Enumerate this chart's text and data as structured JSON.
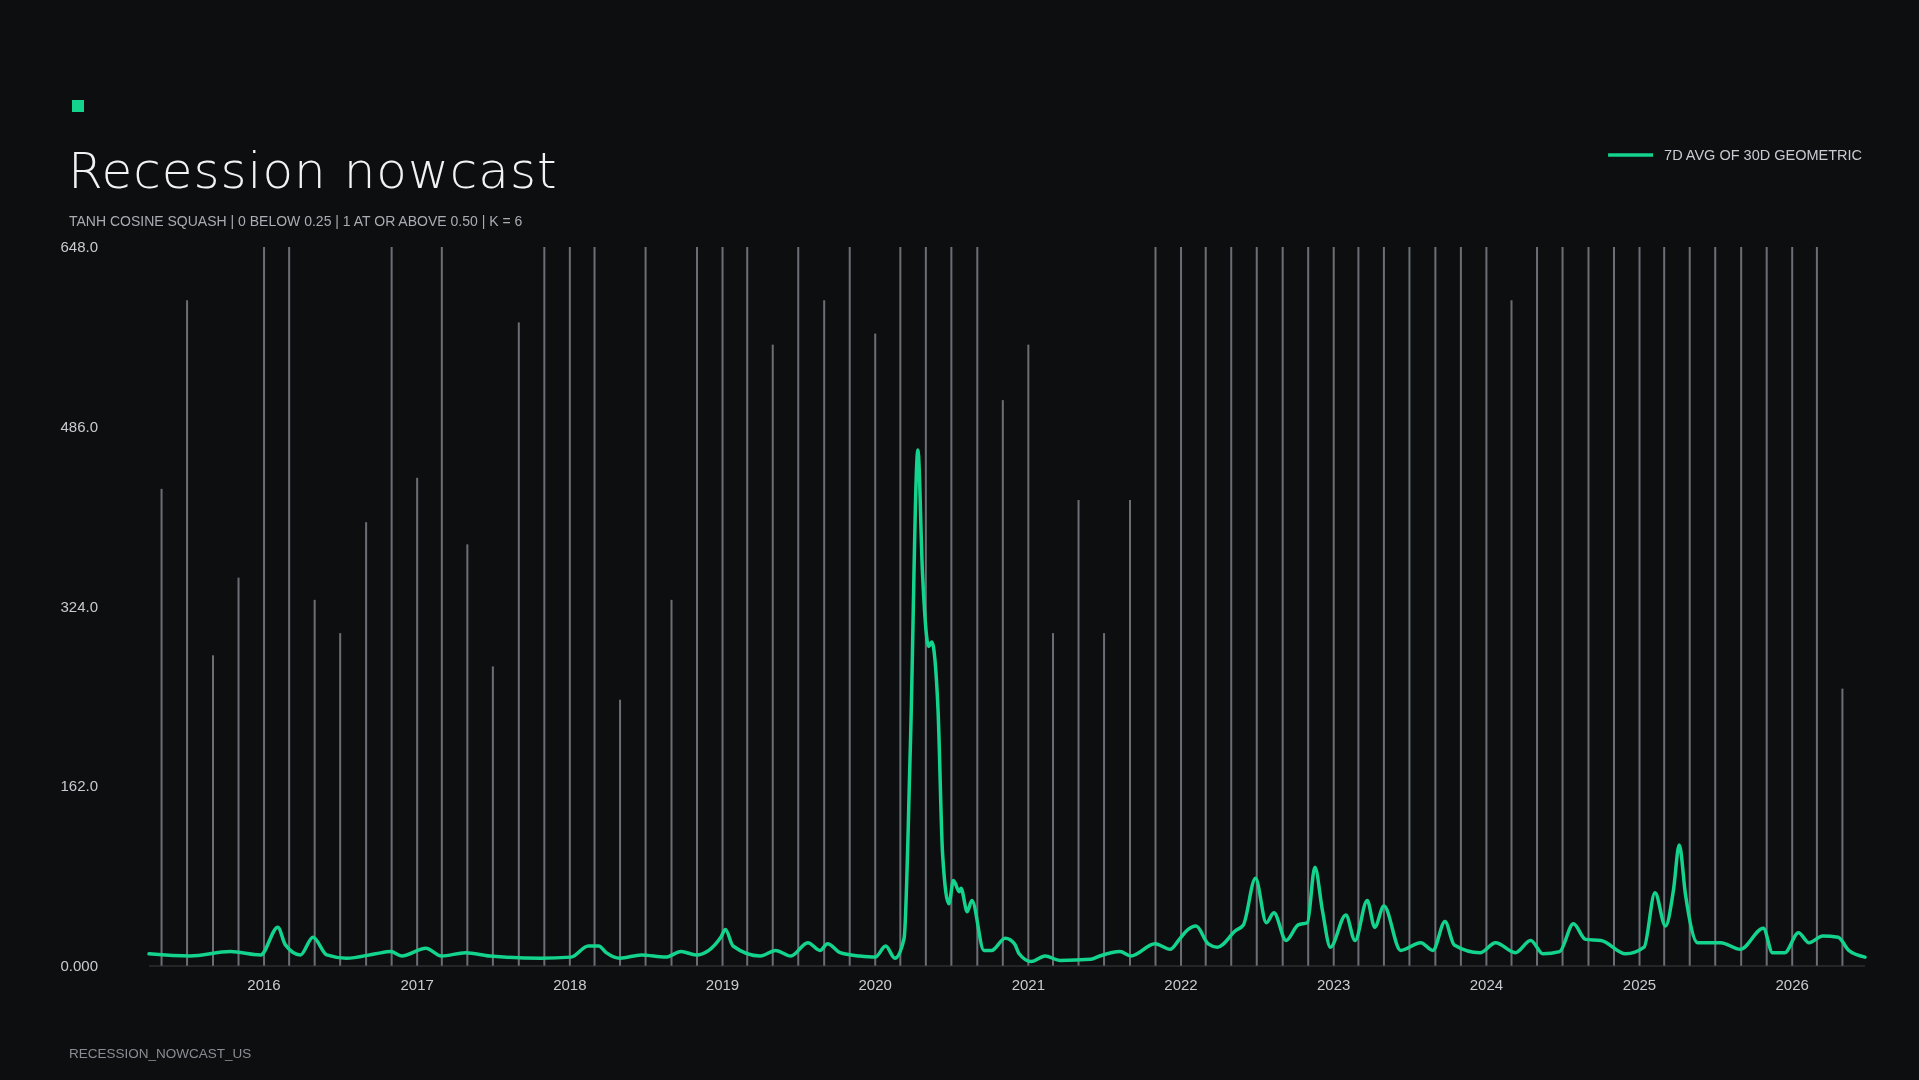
{
  "chart_data": {
    "type": "line",
    "title": "Recession nowcast",
    "subtitle": "TANH COSINE SQUASH | 0 BELOW 0.25 | 1 AT OR ABOVE 0.50 | K = 6",
    "annotations": [
      "RECESSION_NOWCAST_US"
    ],
    "xlim": [
      "2015-04-01",
      "2026-06-24"
    ],
    "xticks": [
      "2016",
      "2017",
      "2018",
      "2019",
      "2020",
      "2021",
      "2022",
      "2023",
      "2024",
      "2025",
      "2026"
    ],
    "ylim": [
      0,
      648
    ],
    "yticks": [
      {
        "value": 0,
        "label": "0.000"
      },
      {
        "value": 162,
        "label": "162.0"
      },
      {
        "value": 324,
        "label": "324.0"
      },
      {
        "value": 486,
        "label": "486.0"
      },
      {
        "value": 648,
        "label": "648.0"
      }
    ],
    "grid": false,
    "legend": "top right",
    "series": [
      {
        "type": "bar",
        "color": "#8b8f96",
        "x": [
          "2015-05-01",
          "2015-07-01",
          "2015-09-01",
          "2015-11-01",
          "2016-01-01",
          "2016-03-01",
          "2016-05-01",
          "2016-07-01",
          "2016-09-01",
          "2016-11-01",
          "2017-01-01",
          "2017-03-01",
          "2017-05-01",
          "2017-07-01",
          "2017-09-01",
          "2017-11-01",
          "2018-01-01",
          "2018-03-01",
          "2018-05-01",
          "2018-07-01",
          "2018-09-01",
          "2018-11-01",
          "2019-01-01",
          "2019-03-01",
          "2019-05-01",
          "2019-07-01",
          "2019-09-01",
          "2019-11-01",
          "2020-01-01",
          "2020-03-01",
          "2020-05-01",
          "2020-07-01",
          "2020-09-01",
          "2020-11-01",
          "2021-01-01",
          "2021-03-01",
          "2021-05-01",
          "2021-07-01",
          "2021-09-01",
          "2021-11-01",
          "2022-01-01",
          "2022-03-01",
          "2022-05-01",
          "2022-07-01",
          "2022-09-01",
          "2022-11-01",
          "2023-01-01",
          "2023-03-01",
          "2023-05-01",
          "2023-07-01",
          "2023-09-01",
          "2023-11-01",
          "2024-01-01",
          "2024-03-01",
          "2024-05-01",
          "2024-07-01",
          "2024-09-01",
          "2024-11-01",
          "2025-01-01",
          "2025-03-01",
          "2025-05-01",
          "2025-07-01",
          "2025-09-01",
          "2025-11-01",
          "2026-01-01",
          "2026-03-01",
          "2026-05-01"
        ],
        "values": [
          430,
          600,
          280,
          350,
          648,
          648,
          330,
          300,
          400,
          648,
          440,
          648,
          380,
          270,
          580,
          648,
          648,
          648,
          240,
          648,
          330,
          648,
          648,
          648,
          560,
          648,
          600,
          648,
          570,
          648,
          648,
          648,
          648,
          510,
          560,
          300,
          420,
          300,
          420,
          648,
          648,
          648,
          648,
          648,
          648,
          648,
          648,
          648,
          648,
          648,
          648,
          648,
          648,
          600,
          648,
          648,
          648,
          648,
          648,
          648,
          648,
          648,
          648,
          648,
          648,
          648,
          250
        ]
      },
      {
        "name": "7D AVG OF 30D GEOMETRIC",
        "color": "#14d38d",
        "x": [
          "2015-04-01",
          "2015-07-08",
          "2015-10-12",
          "2015-12-24",
          "2016-02-03",
          "2016-02-21",
          "2016-03-28",
          "2016-04-27",
          "2016-05-30",
          "2016-07-16",
          "2016-09-24",
          "2016-10-30",
          "2016-11-25",
          "2017-01-22",
          "2017-02-28",
          "2017-04-27",
          "2017-06-24",
          "2017-10-23",
          "2018-01-04",
          "2018-02-14",
          "2018-03-11",
          "2018-03-29",
          "2018-05-01",
          "2018-06-21",
          "2018-08-18",
          "2018-09-24",
          "2018-10-30",
          "2018-12-28",
          "2019-01-08",
          "2019-01-26",
          "2019-04-01",
          "2019-05-08",
          "2019-06-13",
          "2019-07-24",
          "2019-08-22",
          "2019-09-09",
          "2019-10-09",
          "2019-11-25",
          "2020-01-01",
          "2020-01-26",
          "2020-02-17",
          "2020-03-10",
          "2020-03-25",
          "2020-04-12",
          "2020-04-23",
          "2020-05-08",
          "2020-05-15",
          "2020-05-30",
          "2020-06-10",
          "2020-06-25",
          "2020-07-06",
          "2020-07-20",
          "2020-07-24",
          "2020-08-08",
          "2020-08-19",
          "2020-09-17",
          "2020-10-05",
          "2020-11-07",
          "2020-11-29",
          "2020-12-10",
          "2021-01-08",
          "2021-02-10",
          "2021-03-18",
          "2021-05-30",
          "2021-06-21",
          "2021-08-08",
          "2021-09-03",
          "2021-10-31",
          "2021-12-06",
          "2021-12-28",
          "2022-01-15",
          "2022-02-06",
          "2022-03-07",
          "2022-03-29",
          "2022-05-12",
          "2022-05-30",
          "2022-06-28",
          "2022-07-24",
          "2022-08-11",
          "2022-09-09",
          "2022-10-08",
          "2022-10-30",
          "2022-11-17",
          "2022-12-05",
          "2022-12-24",
          "2023-01-30",
          "2023-02-21",
          "2023-03-22",
          "2023-04-09",
          "2023-05-01",
          "2023-06-10",
          "2023-07-28",
          "2023-08-26",
          "2023-09-24",
          "2023-10-16",
          "2023-12-17",
          "2024-01-23",
          "2024-03-10",
          "2024-04-16",
          "2024-05-15",
          "2024-06-24",
          "2024-07-27",
          "2024-08-25",
          "2024-10-01",
          "2024-11-29",
          "2025-01-12",
          "2025-02-07",
          "2025-03-04",
          "2025-03-23",
          "2025-04-06",
          "2025-04-21",
          "2025-05-20",
          "2025-07-14",
          "2025-08-30",
          "2025-10-24",
          "2025-11-15",
          "2025-12-14",
          "2026-01-16",
          "2026-02-10",
          "2026-03-15",
          "2026-04-21",
          "2026-05-16",
          "2026-06-24"
        ],
        "values": [
          11,
          9,
          13,
          10,
          35,
          19,
          10,
          26,
          10,
          7,
          11,
          13,
          9,
          16,
          9,
          12,
          9,
          7,
          8,
          18,
          18,
          12,
          7,
          10,
          8,
          13,
          10,
          26,
          33,
          18,
          9,
          14,
          9,
          21,
          14,
          20,
          12,
          9,
          8,
          18,
          7,
          25,
          198,
          465,
          354,
          288,
          292,
          232,
          101,
          56,
          77,
          67,
          70,
          49,
          59,
          14,
          14,
          25,
          20,
          11,
          4,
          9,
          5,
          6,
          9,
          13,
          9,
          20,
          15,
          24,
          32,
          36,
          20,
          17,
          32,
          37,
          79,
          39,
          48,
          23,
          37,
          39,
          89,
          50,
          17,
          46,
          23,
          59,
          35,
          54,
          14,
          21,
          14,
          40,
          19,
          12,
          21,
          12,
          23,
          11,
          13,
          38,
          24,
          23,
          11,
          17,
          66,
          36,
          68,
          109,
          64,
          21,
          21,
          15,
          34,
          12,
          12,
          30,
          21,
          27,
          26,
          14,
          8
        ]
      }
    ]
  }
}
